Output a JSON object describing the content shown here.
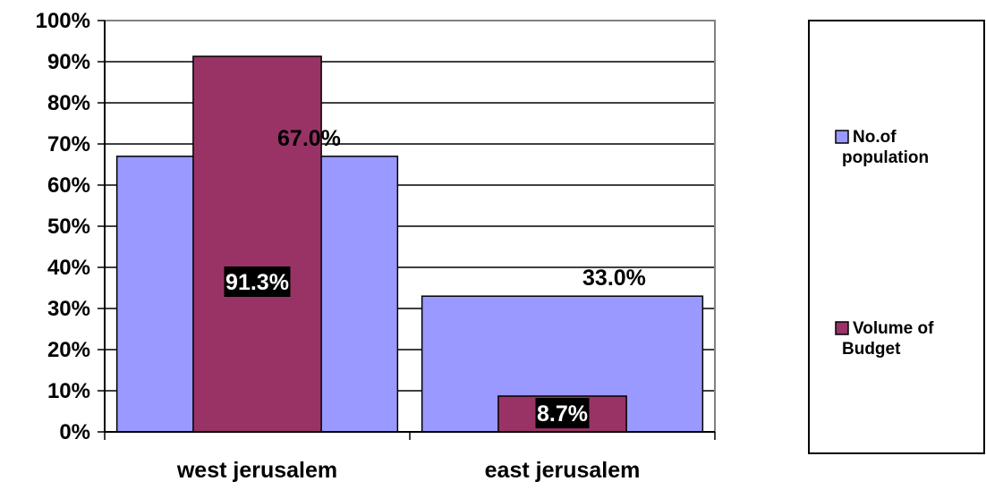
{
  "chart_data": {
    "type": "bar",
    "categories": [
      "west jerusalem",
      "east jerusalem"
    ],
    "series": [
      {
        "name": "No.of population",
        "values": [
          0.67,
          0.33
        ],
        "labels": [
          "67.0%",
          "33.0%"
        ],
        "color": "#9999ff",
        "label_style": "plain"
      },
      {
        "name": "Volume of Budget",
        "values": [
          0.913,
          0.087
        ],
        "labels": [
          "91.3%",
          "8.7%"
        ],
        "color": "#993366",
        "label_style": "boxed"
      }
    ],
    "ylim": [
      0,
      1
    ],
    "yticks": [
      "0%",
      "10%",
      "20%",
      "30%",
      "40%",
      "50%",
      "60%",
      "70%",
      "80%",
      "90%",
      "100%"
    ],
    "grid": true,
    "legend": {
      "position": "right",
      "entries": [
        {
          "lines": [
            "No.of",
            "population"
          ],
          "color": "#9999ff"
        },
        {
          "lines": [
            "Volume of",
            "Budget"
          ],
          "color": "#993366"
        }
      ]
    }
  }
}
